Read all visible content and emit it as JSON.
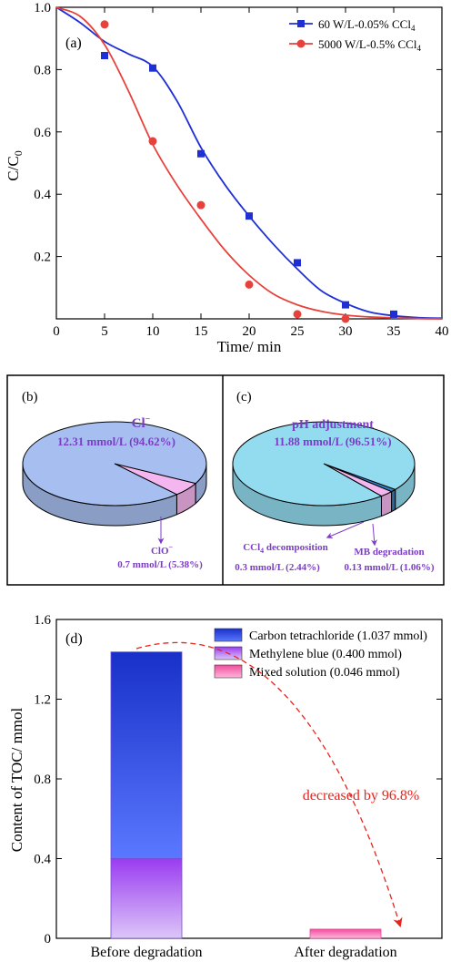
{
  "chart_data": [
    {
      "panel": "(a)",
      "type": "scatter",
      "xlabel": "Time/ min",
      "ylabel": "C/C",
      "ylabel_sub": "0",
      "xlim": [
        0,
        40
      ],
      "ylim": [
        0,
        1.0
      ],
      "xticks": [
        0,
        5,
        10,
        15,
        20,
        25,
        30,
        35,
        40
      ],
      "yticks": [
        0.2,
        0.4,
        0.6,
        0.8,
        1.0
      ],
      "ytick_labels": [
        "0.2",
        "0.4",
        "0.6",
        "0.8",
        "1.0"
      ],
      "legend_position": "top-right",
      "series": [
        {
          "name": "60 W/L-0.05% CCl",
          "name_sub": "4",
          "color": "#1f2fd6",
          "marker": "square",
          "x": [
            5,
            10,
            15,
            20,
            25,
            30,
            35
          ],
          "y": [
            0.845,
            0.805,
            0.53,
            0.33,
            0.18,
            0.045,
            0.015
          ],
          "fit_x": [
            0,
            2.5,
            5,
            7.5,
            10,
            12.5,
            15,
            17.5,
            20,
            22.5,
            25,
            27.5,
            30,
            32.5,
            35,
            37.5,
            40
          ],
          "fit_y": [
            1.0,
            0.95,
            0.89,
            0.85,
            0.81,
            0.7,
            0.55,
            0.43,
            0.33,
            0.24,
            0.16,
            0.09,
            0.05,
            0.022,
            0.01,
            0.004,
            0.002
          ]
        },
        {
          "name": "5000 W/L-0.5% CCl",
          "name_sub": "4",
          "color": "#e8413c",
          "marker": "circle",
          "x": [
            5,
            10,
            15,
            20,
            25,
            30
          ],
          "y": [
            0.945,
            0.57,
            0.365,
            0.11,
            0.015,
            0.0
          ],
          "fit_x": [
            0,
            2.5,
            5,
            7.5,
            10,
            12.5,
            15,
            17.5,
            20,
            22.5,
            25,
            27.5,
            30,
            32.5,
            35,
            37.5,
            40
          ],
          "fit_y": [
            1.0,
            0.97,
            0.88,
            0.73,
            0.56,
            0.43,
            0.32,
            0.22,
            0.14,
            0.08,
            0.045,
            0.024,
            0.012,
            0.006,
            0.003,
            0.001,
            0.0
          ]
        }
      ]
    },
    {
      "panel": "(b)",
      "type": "pie",
      "slices": [
        {
          "label": "Cl",
          "label_sup": "−",
          "value_text": "12.31 mmol/L (94.62%)",
          "value": 94.62,
          "color": "#a7bff0"
        },
        {
          "label": "ClO",
          "label_sup": "−",
          "value_text": "0.7 mmol/L (5.38%)",
          "value": 5.38,
          "color": "#f4b6ee"
        }
      ]
    },
    {
      "panel": "(c)",
      "type": "pie",
      "slices": [
        {
          "label": "pH adjustment",
          "value_text": "11.88 mmol/L (96.51%)",
          "value": 96.51,
          "color": "#93dcf0"
        },
        {
          "label": "CCl",
          "label_sub": "4",
          "label_tail": " decomposition",
          "value_text": "0.3 mmol/L (2.44%)",
          "value": 2.44,
          "color": "#f4b6ee"
        },
        {
          "label": "MB degradation",
          "value_text": "0.13 mmol/L (1.06%)",
          "value": 1.06,
          "color": "#2f7fbf"
        }
      ]
    },
    {
      "panel": "(d)",
      "type": "bar",
      "stacked": true,
      "categories": [
        "Before degradation",
        "After degradation"
      ],
      "ylabel": "Content of TOC/ mmol",
      "ylim": [
        0,
        1.6
      ],
      "yticks": [
        0,
        0.4,
        0.8,
        1.2,
        1.6
      ],
      "ytick_labels": [
        "0",
        "0.4",
        "0.8",
        "1.2",
        "1.6"
      ],
      "legend_position": "top-right",
      "annotation": "decreased by 96.8%",
      "annotation_color": "#e8221c",
      "series": [
        {
          "name": "Carbon tetrachloride (1.037 mmol)",
          "values": [
            1.037,
            0
          ],
          "color_top": "#1830c8",
          "color_bottom": "#5a78ff"
        },
        {
          "name": "Methylene blue (0.400 mmol)",
          "values": [
            0.4,
            0
          ],
          "color_top": "#9a3cf0",
          "color_bottom": "#dcc6f8"
        },
        {
          "name": "Mixed solution (0.046 mmol)",
          "values": [
            0,
            0.046
          ],
          "color_top": "#f04c9c",
          "color_bottom": "#ffb8dc"
        }
      ]
    }
  ]
}
